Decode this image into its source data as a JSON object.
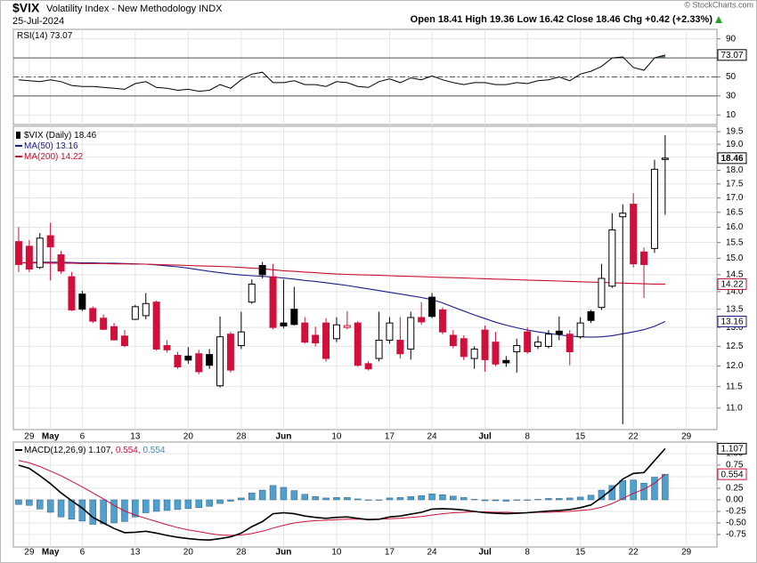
{
  "watermark": "© StockCharts.com",
  "chart_data": [
    {
      "type": "line",
      "ylim": [
        0,
        100
      ],
      "yticks": [
        10,
        30,
        50,
        70,
        90
      ],
      "levels": [
        30,
        50,
        70
      ],
      "fill_color": "#4f6f4f",
      "grid": true,
      "series": [
        {
          "name": "RSI(14)",
          "color": "#000000",
          "values": [
            47,
            46,
            45,
            47,
            45,
            41,
            40,
            40,
            39,
            38,
            37,
            43,
            45,
            39,
            38,
            36,
            37,
            35,
            36,
            42,
            38,
            47,
            53,
            55,
            44,
            44,
            46,
            42,
            42,
            40,
            45,
            44,
            40,
            39,
            45,
            48,
            44,
            49,
            47,
            51,
            47,
            44,
            42,
            44,
            44,
            42,
            42,
            44,
            43,
            46,
            47,
            50,
            46,
            53,
            56,
            61,
            70,
            71,
            60,
            57,
            70,
            73.07,
            null,
            null
          ]
        }
      ]
    },
    {
      "type": "candlestick",
      "title": "$VIX",
      "subtitle": "Volatility Index - New Methodology INDX",
      "date": "25-Jul-2024",
      "quote": "Open 18.41 High 19.36 Low 16.42 Close 18.46 Chg +0.42 (+2.33%)",
      "log": true,
      "grid": true,
      "up_color": "#000000",
      "down_color": "#d0103a",
      "ylim": [
        10.52,
        19.72
      ],
      "yticks": [
        {
          "value": 11,
          "label": "11.0"
        },
        11.5,
        {
          "value": 12,
          "label": "12.0"
        },
        12.5,
        {
          "value": 13,
          "label": "13.0"
        },
        13.5,
        {
          "value": 14,
          "label": "14.0"
        },
        14.5,
        {
          "value": 15,
          "label": "15.0"
        },
        15.5,
        {
          "value": 16,
          "label": "16.0"
        },
        16.5,
        {
          "value": 17,
          "label": "17.0"
        },
        17.5,
        {
          "value": 18,
          "label": "18.0"
        },
        18.5,
        {
          "value": 19,
          "label": "19.0"
        },
        19.5
      ],
      "categories": [
        null,
        "29",
        null,
        "May",
        null,
        null,
        "6",
        null,
        null,
        null,
        null,
        "13",
        null,
        null,
        null,
        null,
        "20",
        null,
        null,
        null,
        null,
        "28",
        null,
        null,
        null,
        "Jun",
        null,
        null,
        null,
        null,
        "10",
        null,
        null,
        null,
        null,
        "17",
        null,
        null,
        null,
        "24",
        null,
        null,
        null,
        null,
        "Jul",
        null,
        null,
        null,
        "8",
        null,
        null,
        null,
        null,
        "15",
        null,
        null,
        null,
        null,
        "22",
        null,
        null,
        null,
        null,
        "29"
      ],
      "series": [
        {
          "name": "$VIX (Daily)",
          "open": [
            15.53,
            15.38,
            14.72,
            15.72,
            15.11,
            14.44,
            13.93,
            13.52,
            13.25,
            13.02,
            12.77,
            13.22,
            13.32,
            13.7,
            12.52,
            12.27,
            12.25,
            12.31,
            12.29,
            11.52,
            12.82,
            12.52,
            13.7,
            14.78,
            14.44,
            13.12,
            13.5,
            13.12,
            12.79,
            13.12,
            12.7,
            13.0,
            13.12,
            12.06,
            12.19,
            12.66,
            12.66,
            12.43,
            13.27,
            13.84,
            13.48,
            12.79,
            12.7,
            12.19,
            12.93,
            12.61,
            12.14,
            12.36,
            12.88,
            12.5,
            12.5,
            12.9,
            12.82,
            12.75,
            13.43,
            13.55,
            14.16,
            16.35,
            16.78,
            15.2,
            15.31,
            18.41,
            null,
            null
          ],
          "high": [
            16.0,
            15.58,
            15.81,
            16.15,
            15.23,
            14.58,
            14.02,
            13.58,
            13.35,
            13.12,
            12.93,
            13.62,
            13.96,
            13.74,
            12.66,
            12.36,
            12.48,
            12.41,
            12.43,
            13.3,
            12.88,
            13.43,
            14.36,
            14.89,
            14.83,
            14.36,
            14.14,
            13.28,
            13.02,
            13.25,
            13.28,
            13.45,
            13.17,
            12.12,
            13.43,
            13.28,
            13.28,
            13.43,
            13.7,
            13.96,
            13.55,
            12.93,
            12.79,
            12.5,
            13.05,
            12.88,
            12.25,
            12.7,
            13.0,
            12.77,
            12.93,
            13.3,
            12.93,
            13.28,
            13.48,
            14.83,
            16.47,
            16.78,
            17.17,
            15.34,
            18.4,
            19.36,
            null,
            null
          ],
          "low": [
            14.58,
            14.58,
            14.67,
            14.33,
            14.53,
            13.45,
            13.45,
            13.12,
            12.93,
            12.65,
            12.48,
            13.2,
            13.22,
            12.39,
            12.34,
            11.93,
            12.06,
            11.8,
            11.93,
            11.48,
            11.84,
            12.43,
            13.65,
            14.39,
            12.95,
            12.98,
            13.05,
            12.57,
            12.5,
            12.11,
            12.61,
            12.95,
            11.98,
            11.89,
            12.12,
            12.57,
            12.19,
            12.16,
            13.07,
            13.25,
            12.82,
            12.45,
            12.15,
            11.93,
            11.86,
            12.0,
            11.98,
            11.84,
            12.31,
            12.43,
            12.45,
            12.66,
            12.02,
            12.7,
            13.12,
            13.48,
            14.11,
            10.64,
            14.72,
            13.82,
            15.17,
            16.42,
            null,
            null
          ],
          "close": [
            14.81,
            14.67,
            15.64,
            15.36,
            14.61,
            13.48,
            13.5,
            13.17,
            12.95,
            12.67,
            12.52,
            13.57,
            13.66,
            12.43,
            12.41,
            11.98,
            12.15,
            11.86,
            12.02,
            12.75,
            11.9,
            12.88,
            14.22,
            14.5,
            13.0,
            13.04,
            13.08,
            12.61,
            12.59,
            12.19,
            13.07,
            13.05,
            12.02,
            11.93,
            12.66,
            13.12,
            12.31,
            13.27,
            13.15,
            13.3,
            12.88,
            12.52,
            12.24,
            12.43,
            12.16,
            12.05,
            12.08,
            12.52,
            12.36,
            12.61,
            12.82,
            12.82,
            12.36,
            13.12,
            13.19,
            14.39,
            15.91,
            16.47,
            14.83,
            14.81,
            18.04,
            18.46,
            null,
            null
          ]
        },
        {
          "name": "MA(50)",
          "color": "#1c1c8c",
          "values": [
            14.86,
            14.87,
            14.88,
            14.88,
            14.88,
            14.87,
            14.86,
            14.86,
            14.85,
            14.85,
            14.84,
            14.83,
            14.82,
            14.8,
            14.77,
            14.74,
            14.7,
            14.65,
            14.6,
            14.56,
            14.52,
            14.49,
            14.47,
            14.45,
            14.43,
            14.4,
            14.37,
            14.33,
            14.3,
            14.26,
            14.22,
            14.18,
            14.13,
            14.08,
            14.03,
            13.98,
            13.93,
            13.88,
            13.83,
            13.77,
            13.68,
            13.56,
            13.45,
            13.34,
            13.24,
            13.14,
            13.06,
            12.99,
            12.93,
            12.88,
            12.84,
            12.8,
            12.77,
            12.75,
            12.74,
            12.75,
            12.78,
            12.83,
            12.88,
            12.94,
            13.03,
            13.16,
            null,
            null
          ]
        },
        {
          "name": "MA(200)",
          "color": "#c8102e",
          "values": [
            14.86,
            14.86,
            14.86,
            14.85,
            14.85,
            14.85,
            14.84,
            14.84,
            14.84,
            14.83,
            14.83,
            14.82,
            14.82,
            14.81,
            14.8,
            14.79,
            14.78,
            14.77,
            14.76,
            14.75,
            14.74,
            14.72,
            14.7,
            14.68,
            14.65,
            14.62,
            14.6,
            14.58,
            14.56,
            14.54,
            14.52,
            14.51,
            14.5,
            14.49,
            14.48,
            14.47,
            14.46,
            14.45,
            14.44,
            14.43,
            14.42,
            14.41,
            14.4,
            14.39,
            14.38,
            14.37,
            14.36,
            14.35,
            14.34,
            14.33,
            14.32,
            14.31,
            14.3,
            14.29,
            14.28,
            14.27,
            14.26,
            14.25,
            14.24,
            14.23,
            14.22,
            14.22,
            null,
            null
          ]
        }
      ]
    },
    {
      "type": "macd",
      "ylim": [
        -1.02,
        1.25
      ],
      "grid": true,
      "yticks": [
        {
          "value": 1,
          "label": "1.00"
        },
        0.75,
        {
          "value": 0.5,
          "label": "0.50"
        },
        0.25,
        {
          "value": 0,
          "label": "0.00"
        },
        -0.25,
        {
          "value": -0.5,
          "label": "-0.50"
        },
        -0.75
      ],
      "legend": [
        "MACD(12,26,9) 1.107,",
        "0.554,",
        "0.554"
      ],
      "series": [
        {
          "name": "MACD",
          "color": "#000000",
          "values": [
            0.75,
            0.68,
            0.52,
            0.35,
            0.15,
            -0.02,
            -0.18,
            -0.38,
            -0.5,
            -0.62,
            -0.71,
            -0.7,
            -0.68,
            -0.72,
            -0.77,
            -0.81,
            -0.84,
            -0.86,
            -0.87,
            -0.84,
            -0.8,
            -0.72,
            -0.58,
            -0.47,
            -0.3,
            -0.28,
            -0.3,
            -0.35,
            -0.38,
            -0.4,
            -0.38,
            -0.37,
            -0.4,
            -0.43,
            -0.42,
            -0.37,
            -0.35,
            -0.31,
            -0.27,
            -0.2,
            -0.19,
            -0.2,
            -0.22,
            -0.25,
            -0.28,
            -0.29,
            -0.3,
            -0.29,
            -0.28,
            -0.26,
            -0.24,
            -0.23,
            -0.21,
            -0.17,
            -0.11,
            0.05,
            0.23,
            0.45,
            0.57,
            0.59,
            0.85,
            1.107,
            null,
            null
          ]
        },
        {
          "name": "Signal",
          "color": "#d0103a",
          "values": [
            0.85,
            0.8,
            0.72,
            0.62,
            0.52,
            0.4,
            0.28,
            0.15,
            0.02,
            -0.12,
            -0.24,
            -0.33,
            -0.4,
            -0.47,
            -0.54,
            -0.6,
            -0.65,
            -0.69,
            -0.73,
            -0.76,
            -0.77,
            -0.76,
            -0.73,
            -0.68,
            -0.61,
            -0.55,
            -0.5,
            -0.47,
            -0.45,
            -0.44,
            -0.43,
            -0.42,
            -0.42,
            -0.42,
            -0.42,
            -0.41,
            -0.4,
            -0.38,
            -0.36,
            -0.33,
            -0.3,
            -0.28,
            -0.27,
            -0.26,
            -0.26,
            -0.27,
            -0.27,
            -0.28,
            -0.28,
            -0.27,
            -0.27,
            -0.26,
            -0.25,
            -0.23,
            -0.21,
            -0.16,
            -0.08,
            0.03,
            0.14,
            0.23,
            0.36,
            0.554,
            null,
            null
          ]
        },
        {
          "name": "Histogram",
          "color": "#4f9fcf",
          "values": [
            -0.1,
            -0.12,
            -0.2,
            -0.27,
            -0.37,
            -0.42,
            -0.46,
            -0.53,
            -0.52,
            -0.5,
            -0.47,
            -0.37,
            -0.28,
            -0.25,
            -0.23,
            -0.21,
            -0.19,
            -0.17,
            -0.14,
            -0.08,
            -0.03,
            0.04,
            0.15,
            0.21,
            0.31,
            0.27,
            0.2,
            0.12,
            0.07,
            0.04,
            0.05,
            0.05,
            0.02,
            -0.01,
            0.0,
            0.04,
            0.05,
            0.07,
            0.09,
            0.13,
            0.11,
            0.08,
            0.05,
            0.01,
            -0.02,
            -0.02,
            -0.03,
            -0.01,
            0.0,
            0.01,
            0.03,
            0.03,
            0.04,
            0.06,
            0.1,
            0.21,
            0.31,
            0.42,
            0.43,
            0.36,
            0.49,
            0.554,
            null,
            null
          ]
        }
      ]
    }
  ]
}
